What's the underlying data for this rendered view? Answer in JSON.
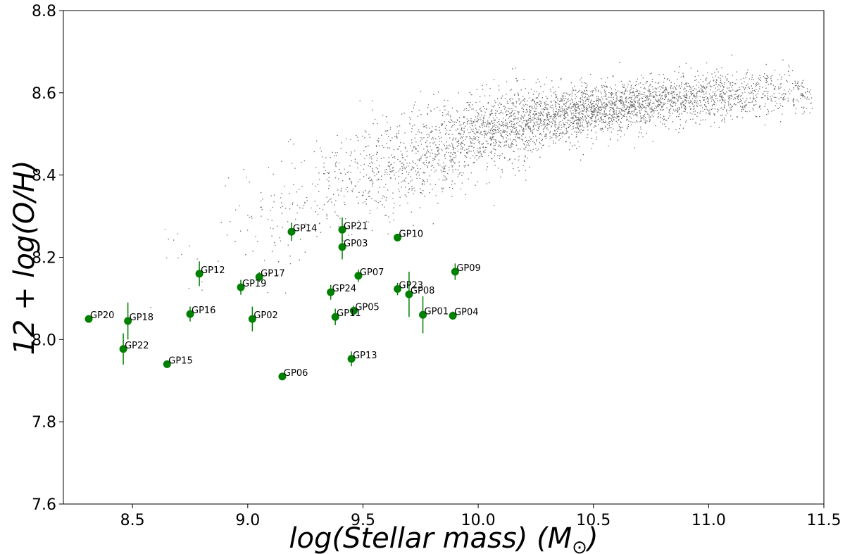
{
  "chart_data": {
    "type": "scatter",
    "title": "",
    "xlabel": "log(Stellar mass) (M⊙)",
    "ylabel": "12 + log(O/H)",
    "xlim": [
      8.2,
      11.5
    ],
    "ylim": [
      7.6,
      8.8
    ],
    "xticks": [
      "8.5",
      "9.0",
      "9.5",
      "10.0",
      "10.5",
      "11.0",
      "11.5"
    ],
    "yticks": [
      "7.6",
      "7.8",
      "8.0",
      "8.2",
      "8.4",
      "8.6",
      "8.8"
    ],
    "grid": false,
    "background_cloud": {
      "description": "dense black point cloud of comparison galaxies following the mass-metallicity relation",
      "color": "#000000",
      "trend": [
        {
          "x": 8.5,
          "y": 8.12
        },
        {
          "x": 9.0,
          "y": 8.28
        },
        {
          "x": 9.5,
          "y": 8.4
        },
        {
          "x": 10.0,
          "y": 8.5
        },
        {
          "x": 10.5,
          "y": 8.56
        },
        {
          "x": 11.0,
          "y": 8.59
        },
        {
          "x": 11.4,
          "y": 8.6
        }
      ]
    },
    "series": [
      {
        "color": "#008000",
        "points": [
          {
            "label": "GP01",
            "x": 9.76,
            "y": 8.06,
            "err": 0.045
          },
          {
            "label": "GP02",
            "x": 9.02,
            "y": 8.05,
            "err": 0.03
          },
          {
            "label": "GP03",
            "x": 9.41,
            "y": 8.225,
            "err": 0.03
          },
          {
            "label": "GP04",
            "x": 9.89,
            "y": 8.058,
            "err": 0.01
          },
          {
            "label": "GP05",
            "x": 9.46,
            "y": 8.07,
            "err": 0.012
          },
          {
            "label": "GP06",
            "x": 9.15,
            "y": 7.91,
            "err": 0.008
          },
          {
            "label": "GP07",
            "x": 9.48,
            "y": 8.155,
            "err": 0.015
          },
          {
            "label": "GP08",
            "x": 9.7,
            "y": 8.11,
            "err": 0.055
          },
          {
            "label": "GP09",
            "x": 9.9,
            "y": 8.165,
            "err": 0.02
          },
          {
            "label": "GP10",
            "x": 9.65,
            "y": 8.248,
            "err": 0.008
          },
          {
            "label": "GP11",
            "x": 9.38,
            "y": 8.055,
            "err": 0.02
          },
          {
            "label": "GP12",
            "x": 8.79,
            "y": 8.16,
            "err": 0.03
          },
          {
            "label": "GP13",
            "x": 9.45,
            "y": 7.953,
            "err": 0.018
          },
          {
            "label": "GP14",
            "x": 9.19,
            "y": 8.262,
            "err": 0.022
          },
          {
            "label": "GP15",
            "x": 8.65,
            "y": 7.94,
            "err": 0.008
          },
          {
            "label": "GP16",
            "x": 8.75,
            "y": 8.062,
            "err": 0.018
          },
          {
            "label": "GP17",
            "x": 9.05,
            "y": 8.152,
            "err": 0.012
          },
          {
            "label": "GP18",
            "x": 8.48,
            "y": 8.045,
            "err": 0.045
          },
          {
            "label": "GP19",
            "x": 8.97,
            "y": 8.127,
            "err": 0.018
          },
          {
            "label": "GP20",
            "x": 8.31,
            "y": 8.05,
            "err": 0.008
          },
          {
            "label": "GP21",
            "x": 9.41,
            "y": 8.267,
            "err": 0.03
          },
          {
            "label": "GP22",
            "x": 8.46,
            "y": 7.977,
            "err": 0.038
          },
          {
            "label": "GP23",
            "x": 9.65,
            "y": 8.123,
            "err": 0.015
          },
          {
            "label": "GP24",
            "x": 9.36,
            "y": 8.115,
            "err": 0.018
          }
        ]
      }
    ]
  }
}
